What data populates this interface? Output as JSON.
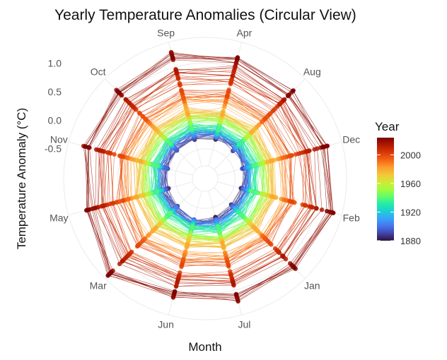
{
  "chart_data": {
    "type": "line",
    "coordinate_system": "polar",
    "title": "Yearly Temperature Anomalies (Circular View)",
    "xlabel": "Month",
    "ylabel": "Temperature Anomaly (°C)",
    "categories": [
      "Apr",
      "Aug",
      "Dec",
      "Feb",
      "Jan",
      "Jul",
      "Jun",
      "Mar",
      "May",
      "Nov",
      "Oct",
      "Sep"
    ],
    "y_ticks": [
      -0.5,
      0.0,
      0.5,
      1.0
    ],
    "y_tick_labels": [
      "-0.5",
      "0.0",
      "0.5",
      "1.0"
    ],
    "ylim": [
      -0.8,
      1.45
    ],
    "grid": true,
    "color_scale": {
      "title": "Year",
      "range": [
        1880,
        2024
      ],
      "ticks": [
        1880,
        1920,
        1960,
        2000
      ],
      "palette": [
        "#30123b",
        "#4145ab",
        "#4675ed",
        "#39a2fc",
        "#1bcfd4",
        "#24eca6",
        "#61fc6c",
        "#a4fc3b",
        "#d1e834",
        "#f3c63a",
        "#fe9b2d",
        "#f36315",
        "#d93806",
        "#b11901",
        "#7a0403"
      ]
    },
    "series": [
      {
        "year_range": [
          1880,
          1900
        ],
        "values": [
          -0.25,
          -0.28,
          -0.3,
          -0.3,
          -0.3,
          -0.25,
          -0.22,
          -0.28,
          -0.3,
          -0.3,
          -0.28,
          -0.25
        ]
      },
      {
        "year_range": [
          1901,
          1940
        ],
        "values": [
          -0.2,
          -0.22,
          -0.22,
          -0.25,
          -0.25,
          -0.2,
          -0.2,
          -0.25,
          -0.22,
          -0.2,
          -0.2,
          -0.18
        ]
      },
      {
        "year_range": [
          1941,
          1980
        ],
        "values": [
          0.0,
          0.02,
          0.0,
          -0.02,
          0.0,
          0.02,
          0.0,
          0.0,
          0.0,
          0.02,
          0.0,
          0.02
        ]
      },
      {
        "year_range": [
          1981,
          2000
        ],
        "values": [
          0.35,
          0.35,
          0.35,
          0.4,
          0.38,
          0.35,
          0.32,
          0.4,
          0.35,
          0.35,
          0.35,
          0.35
        ]
      },
      {
        "year_range": [
          2001,
          2015
        ],
        "values": [
          0.7,
          0.7,
          0.7,
          0.75,
          0.72,
          0.7,
          0.68,
          0.75,
          0.68,
          0.7,
          0.7,
          0.7
        ]
      },
      {
        "year_range": [
          2016,
          2024
        ],
        "values": [
          1.15,
          1.1,
          1.12,
          1.25,
          1.15,
          1.15,
          1.1,
          1.3,
          1.05,
          1.1,
          1.1,
          1.2
        ]
      }
    ]
  }
}
